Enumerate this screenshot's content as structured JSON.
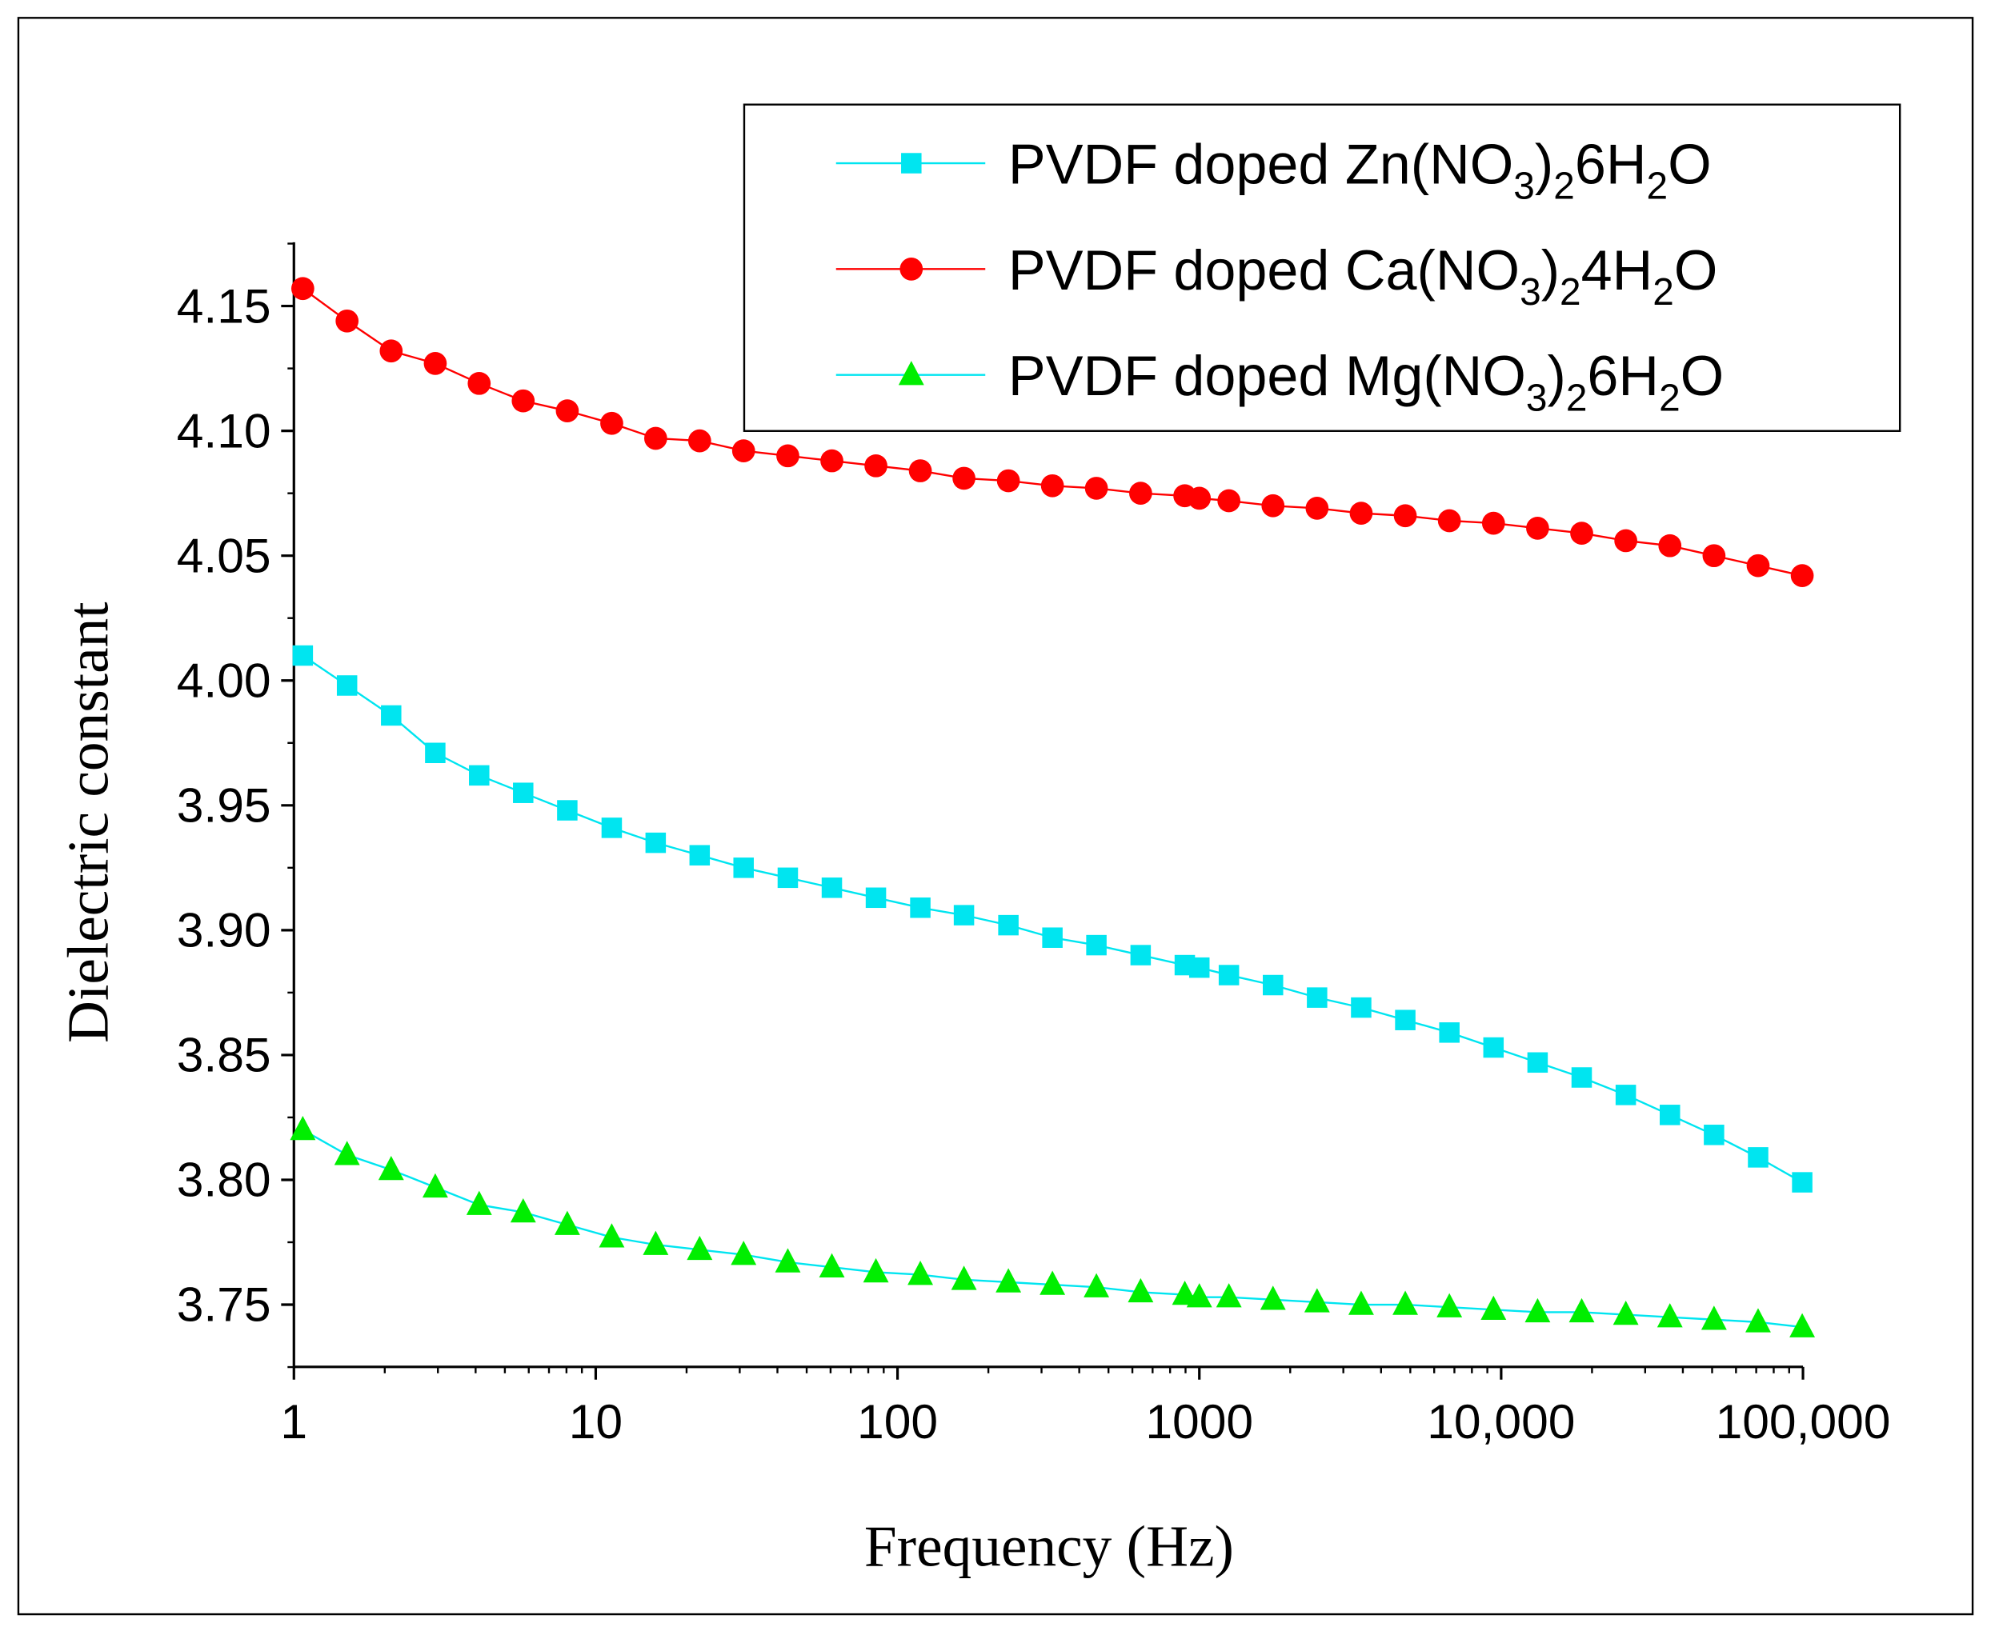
{
  "chart_data": {
    "type": "line",
    "title": "",
    "xlabel": "Frequency (Hz)",
    "ylabel": "Dielectric constant",
    "xscale": "log",
    "xlim": [
      1,
      100000
    ],
    "ylim": [
      3.72,
      4.175
    ],
    "xticks": [
      {
        "v": 1,
        "label": "1"
      },
      {
        "v": 10,
        "label": "10"
      },
      {
        "v": 100,
        "label": "100"
      },
      {
        "v": 1000,
        "label": "1000"
      },
      {
        "v": 10000,
        "label": "10,000"
      },
      {
        "v": 100000,
        "label": "100,000"
      }
    ],
    "yticks": [
      {
        "v": 3.75,
        "label": "3.75"
      },
      {
        "v": 3.8,
        "label": "3.80"
      },
      {
        "v": 3.85,
        "label": "3.85"
      },
      {
        "v": 3.9,
        "label": "3.90"
      },
      {
        "v": 3.95,
        "label": "3.95"
      },
      {
        "v": 4.0,
        "label": "4.00"
      },
      {
        "v": 4.05,
        "label": "4.05"
      },
      {
        "v": 4.1,
        "label": "4.10"
      },
      {
        "v": 4.15,
        "label": "4.15"
      }
    ],
    "legend_position": "top-right",
    "x": [
      1.07,
      1.5,
      2.1,
      2.94,
      4.11,
      5.75,
      8.05,
      11.3,
      15.8,
      22.1,
      30.9,
      43.3,
      60.6,
      84.8,
      119,
      166,
      233,
      326,
      456,
      639,
      895,
      1000,
      1253,
      1754,
      2455,
      3437,
      4812,
      6737,
      9432,
      13205,
      18487,
      25882,
      36235,
      50729,
      71020,
      99428
    ],
    "series": [
      {
        "name": "PVDF doped Zn(NO3)2 6H2O",
        "marker": "square",
        "line_color": "#00e5f0",
        "marker_color": "#00e5f0",
        "label_parts": [
          {
            "t": "PVDF doped Zn(NO"
          },
          {
            "t": "3",
            "sub": true
          },
          {
            "t": ")"
          },
          {
            "t": "2",
            "sub": true
          },
          {
            "t": "6H"
          },
          {
            "t": "2",
            "sub": true
          },
          {
            "t": "O"
          }
        ],
        "values": [
          4.01,
          3.998,
          3.986,
          3.971,
          3.962,
          3.955,
          3.948,
          3.941,
          3.935,
          3.93,
          3.925,
          3.921,
          3.917,
          3.913,
          3.909,
          3.906,
          3.902,
          3.897,
          3.894,
          3.89,
          3.886,
          3.885,
          3.882,
          3.878,
          3.873,
          3.869,
          3.864,
          3.859,
          3.853,
          3.847,
          3.841,
          3.834,
          3.826,
          3.818,
          3.809,
          3.799
        ]
      },
      {
        "name": "PVDF doped Ca(NO3)2 4H2O",
        "marker": "circle",
        "line_color": "#ff0000",
        "marker_color": "#ff0000",
        "label_parts": [
          {
            "t": "PVDF doped Ca(NO"
          },
          {
            "t": "3",
            "sub": true
          },
          {
            "t": ")"
          },
          {
            "t": "2",
            "sub": true
          },
          {
            "t": "4H"
          },
          {
            "t": "2",
            "sub": true
          },
          {
            "t": "O"
          }
        ],
        "values": [
          4.157,
          4.144,
          4.132,
          4.127,
          4.119,
          4.112,
          4.108,
          4.103,
          4.097,
          4.096,
          4.092,
          4.09,
          4.088,
          4.086,
          4.084,
          4.081,
          4.08,
          4.078,
          4.077,
          4.075,
          4.074,
          4.073,
          4.072,
          4.07,
          4.069,
          4.067,
          4.066,
          4.064,
          4.063,
          4.061,
          4.059,
          4.056,
          4.054,
          4.05,
          4.046,
          4.042
        ]
      },
      {
        "name": "PVDF doped Mg(NO3)2 6H2O",
        "marker": "triangle",
        "line_color": "#00e5f0",
        "marker_color": "#00ee00",
        "label_parts": [
          {
            "t": "PVDF doped Mg(NO"
          },
          {
            "t": "3",
            "sub": true
          },
          {
            "t": ")"
          },
          {
            "t": "2",
            "sub": true
          },
          {
            "t": "6H"
          },
          {
            "t": "2",
            "sub": true
          },
          {
            "t": "O"
          }
        ],
        "values": [
          3.82,
          3.81,
          3.804,
          3.797,
          3.79,
          3.787,
          3.782,
          3.777,
          3.774,
          3.772,
          3.77,
          3.767,
          3.765,
          3.763,
          3.762,
          3.76,
          3.759,
          3.758,
          3.757,
          3.755,
          3.754,
          3.753,
          3.753,
          3.752,
          3.751,
          3.75,
          3.75,
          3.749,
          3.748,
          3.747,
          3.747,
          3.746,
          3.745,
          3.744,
          3.743,
          3.741
        ]
      }
    ]
  }
}
